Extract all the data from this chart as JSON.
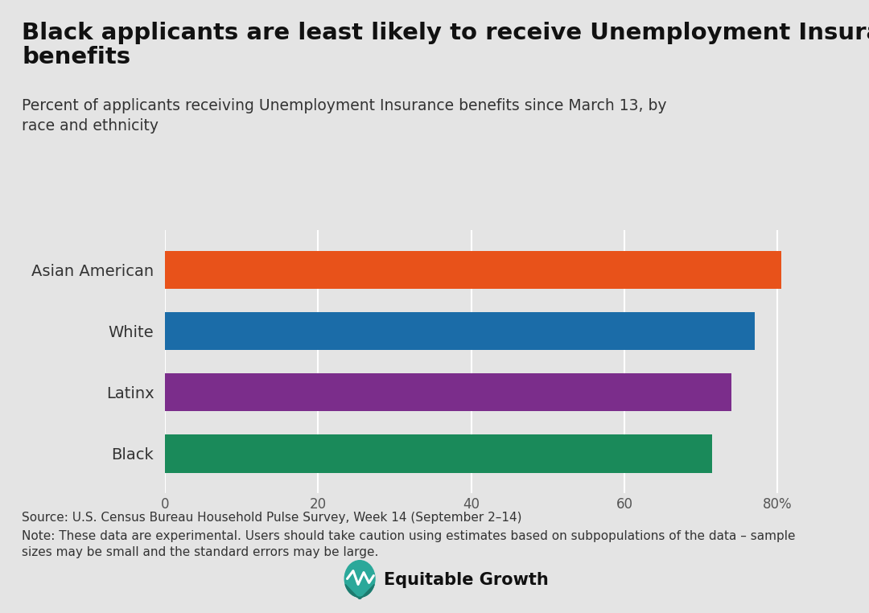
{
  "title_line1": "Black applicants are least likely to receive Unemployment Insurance",
  "title_line2": "benefits",
  "subtitle": "Percent of applicants receiving Unemployment Insurance benefits since March 13, by\nrace and ethnicity",
  "categories": [
    "Asian American",
    "White",
    "Latinx",
    "Black"
  ],
  "values": [
    80.5,
    77.0,
    74.0,
    71.5
  ],
  "bar_colors": [
    "#E8521A",
    "#1B6CA8",
    "#7B2D8B",
    "#1A8A5A"
  ],
  "background_color": "#E4E4E4",
  "xlim": [
    0,
    88
  ],
  "xticks": [
    0,
    20,
    40,
    60,
    80
  ],
  "xtick_labels": [
    "0",
    "20",
    "40",
    "60",
    "80%"
  ],
  "source_text": "Source: U.S. Census Bureau Household Pulse Survey, Week 14 (September 2–14)",
  "note_text": "Note: These data are experimental. Users should take caution using estimates based on subpopulations of the data – sample\nsizes may be small and the standard errors may be large.",
  "title_fontsize": 21,
  "subtitle_fontsize": 13.5,
  "label_fontsize": 14,
  "tick_fontsize": 12,
  "source_fontsize": 11
}
